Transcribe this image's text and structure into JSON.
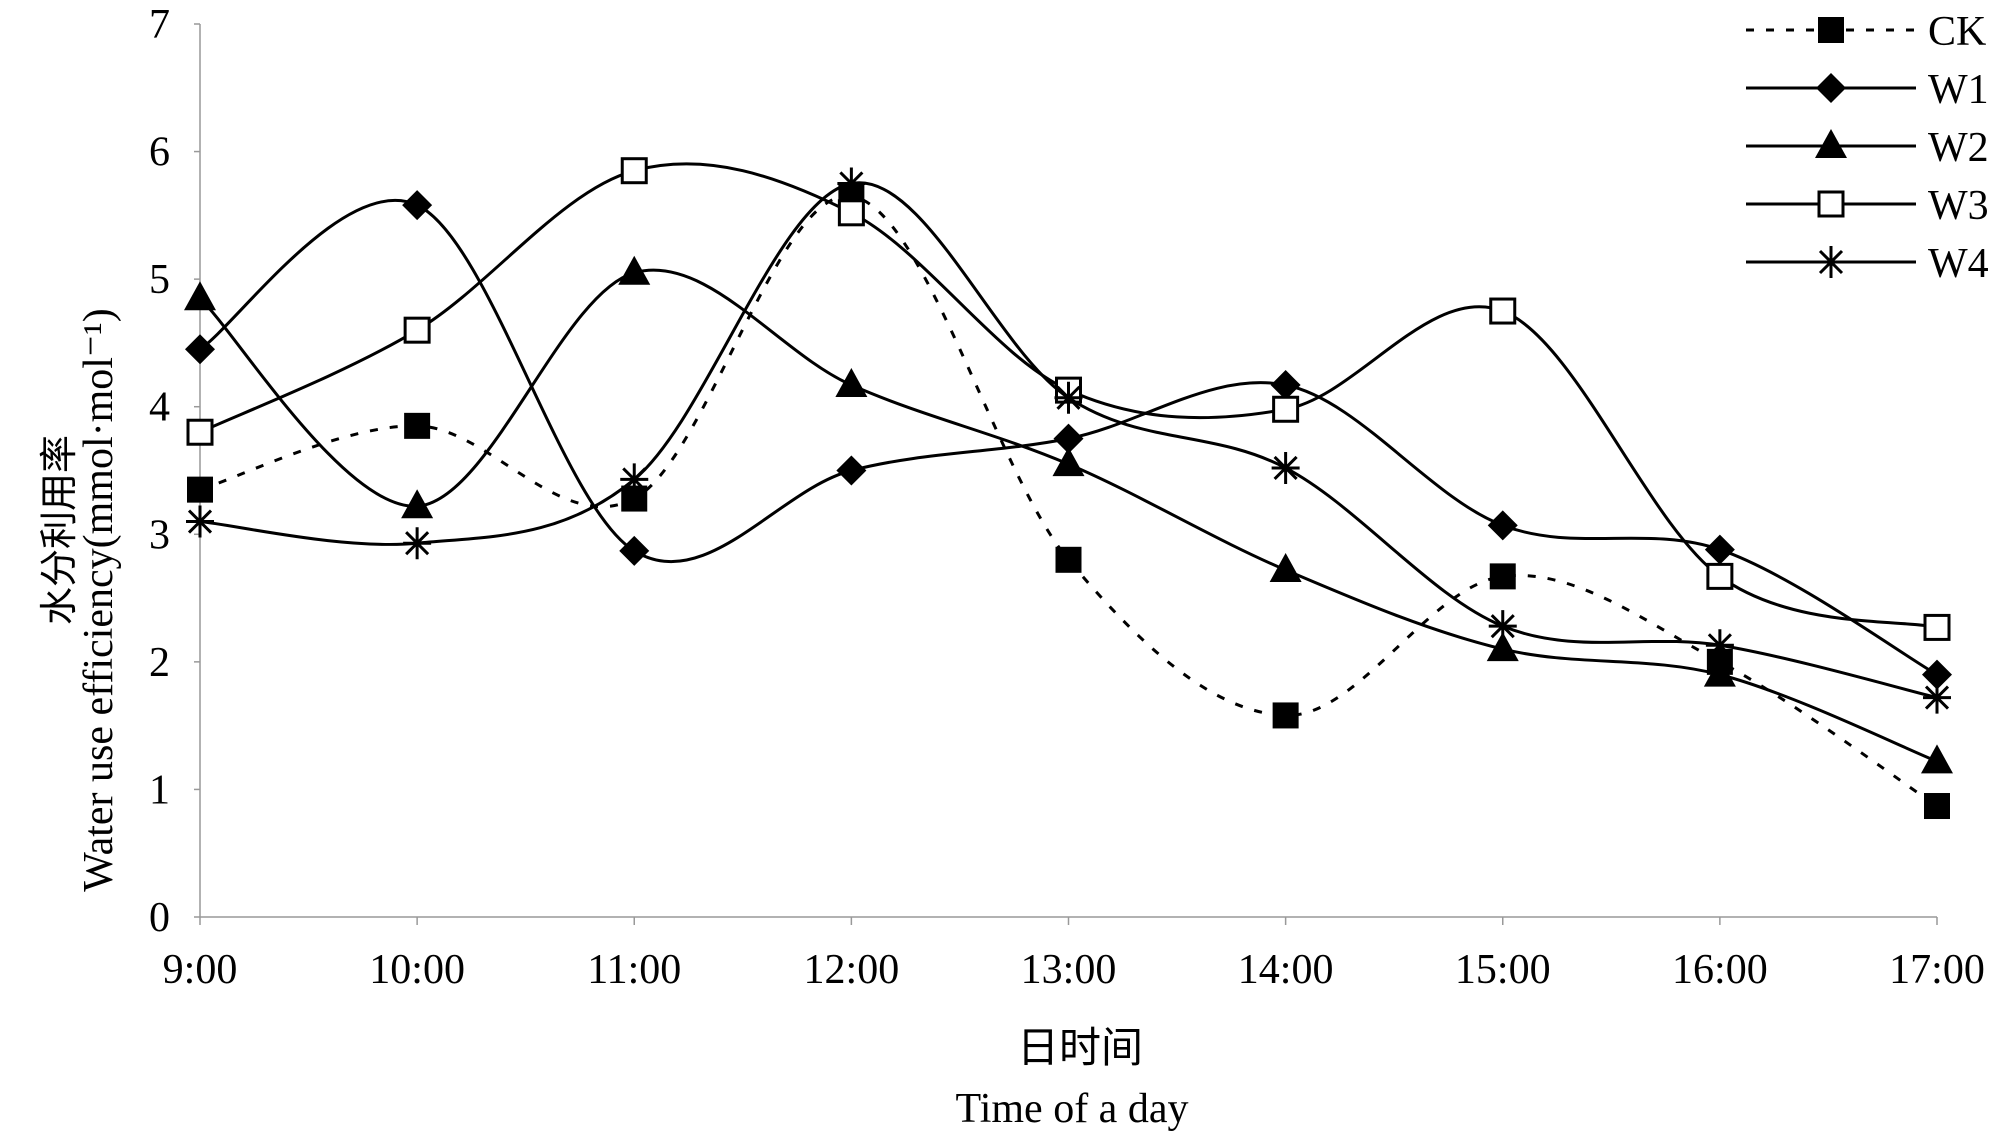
{
  "chart_data": {
    "type": "line",
    "title": "",
    "xlabel_cn": "日时间",
    "xlabel": "Time of a day",
    "ylabel_cn": "水分利用率",
    "ylabel": "Water use  efficiency(mmol·mol⁻¹)",
    "categories": [
      "9:00",
      "10:00",
      "11:00",
      "12:00",
      "13:00",
      "14:00",
      "15:00",
      "16:00",
      "17:00"
    ],
    "ylim": [
      0,
      7
    ],
    "yticks": [
      "0",
      "1",
      "2",
      "3",
      "4",
      "5",
      "6",
      "7"
    ],
    "grid": false,
    "legend_position": "top-right",
    "series": [
      {
        "name": "CK",
        "marker": "filled-square",
        "dashed": true,
        "values": [
          3.35,
          3.85,
          3.28,
          5.65,
          2.8,
          1.58,
          2.67,
          2.0,
          0.87
        ]
      },
      {
        "name": "W1",
        "marker": "filled-diamond",
        "dashed": false,
        "values": [
          4.45,
          5.58,
          2.87,
          3.5,
          3.75,
          4.17,
          3.07,
          2.88,
          1.9
        ]
      },
      {
        "name": "W2",
        "marker": "filled-triangle",
        "dashed": false,
        "values": [
          4.85,
          3.22,
          5.05,
          4.17,
          3.55,
          2.72,
          2.1,
          1.9,
          1.22
        ]
      },
      {
        "name": "W3",
        "marker": "open-square",
        "dashed": false,
        "values": [
          3.8,
          4.6,
          5.85,
          5.52,
          4.13,
          3.98,
          4.75,
          2.67,
          2.27
        ]
      },
      {
        "name": "W4",
        "marker": "asterisk",
        "dashed": false,
        "values": [
          3.1,
          2.93,
          3.43,
          5.75,
          4.07,
          3.52,
          2.28,
          2.13,
          1.72
        ]
      }
    ]
  }
}
